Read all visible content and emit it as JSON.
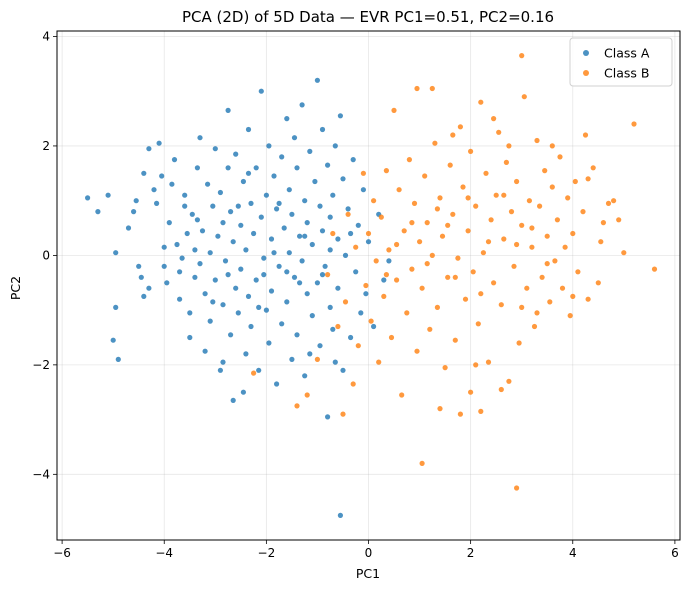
{
  "chart_data": {
    "type": "scatter",
    "title": "PCA (2D) of 5D Data — EVR PC1=0.51, PC2=0.16",
    "xlabel": "PC1",
    "ylabel": "PC2",
    "xlim": [
      -6.1,
      6.1
    ],
    "ylim": [
      -5.2,
      4.1
    ],
    "xticks": [
      -6,
      -4,
      -2,
      0,
      2,
      4,
      6
    ],
    "yticks": [
      -4,
      -2,
      0,
      2,
      4
    ],
    "grid": true,
    "legend_position": "top-right",
    "series": [
      {
        "name": "Class A",
        "color": "#1f77b4",
        "points": [
          [
            -5.5,
            1.05
          ],
          [
            -5.3,
            0.8
          ],
          [
            -5.1,
            1.1
          ],
          [
            -4.95,
            0.05
          ],
          [
            -4.95,
            -0.95
          ],
          [
            -5.0,
            -1.55
          ],
          [
            -4.9,
            -1.9
          ],
          [
            -4.7,
            0.5
          ],
          [
            -4.6,
            0.8
          ],
          [
            -4.55,
            1.0
          ],
          [
            -4.5,
            -0.2
          ],
          [
            -4.45,
            -0.4
          ],
          [
            -4.4,
            -0.75
          ],
          [
            -4.3,
            -0.6
          ],
          [
            -4.4,
            1.5
          ],
          [
            -4.3,
            1.95
          ],
          [
            -4.2,
            1.2
          ],
          [
            -4.1,
            2.05
          ],
          [
            -4.05,
            1.45
          ],
          [
            -4.0,
            0.15
          ],
          [
            -4.0,
            -0.2
          ],
          [
            -3.95,
            -0.5
          ],
          [
            -3.9,
            0.6
          ],
          [
            -3.8,
            1.75
          ],
          [
            -3.75,
            0.2
          ],
          [
            -3.7,
            -0.3
          ],
          [
            -3.7,
            -0.8
          ],
          [
            -3.6,
            1.1
          ],
          [
            -3.6,
            0.9
          ],
          [
            -3.55,
            0.4
          ],
          [
            -3.5,
            -1.05
          ],
          [
            -3.5,
            -1.5
          ],
          [
            -3.45,
            0.75
          ],
          [
            -3.4,
            0.1
          ],
          [
            -3.4,
            -0.4
          ],
          [
            -3.35,
            1.6
          ],
          [
            -3.3,
            2.15
          ],
          [
            -3.3,
            -0.15
          ],
          [
            -3.25,
            0.45
          ],
          [
            -3.2,
            -0.7
          ],
          [
            -3.2,
            -1.75
          ],
          [
            -3.15,
            1.3
          ],
          [
            -3.1,
            0.05
          ],
          [
            -3.1,
            -1.2
          ],
          [
            -3.05,
            0.9
          ],
          [
            -3.0,
            1.95
          ],
          [
            -3.0,
            -0.45
          ],
          [
            -2.95,
            0.35
          ],
          [
            -2.9,
            -2.1
          ],
          [
            -2.9,
            1.15
          ],
          [
            -2.85,
            0.6
          ],
          [
            -2.85,
            -0.9
          ],
          [
            -2.8,
            -0.1
          ],
          [
            -2.75,
            2.65
          ],
          [
            -2.75,
            1.6
          ],
          [
            -2.7,
            0.8
          ],
          [
            -2.7,
            -1.45
          ],
          [
            -2.65,
            0.25
          ],
          [
            -2.65,
            -2.65
          ],
          [
            -2.6,
            -0.6
          ],
          [
            -2.6,
            1.85
          ],
          [
            -2.55,
            -1.05
          ],
          [
            -2.5,
            0.55
          ],
          [
            -2.5,
            -0.25
          ],
          [
            -2.45,
            1.35
          ],
          [
            -2.45,
            -2.5
          ],
          [
            -2.4,
            -1.8
          ],
          [
            -2.4,
            0.1
          ],
          [
            -2.35,
            2.3
          ],
          [
            -2.35,
            -0.75
          ],
          [
            -2.3,
            0.95
          ],
          [
            -2.3,
            -1.3
          ],
          [
            -2.25,
            0.4
          ],
          [
            -2.2,
            1.6
          ],
          [
            -2.2,
            -0.45
          ],
          [
            -2.15,
            -2.1
          ],
          [
            -2.1,
            3.0
          ],
          [
            -2.1,
            0.7
          ],
          [
            -2.05,
            -0.05
          ],
          [
            -2.0,
            1.1
          ],
          [
            -2.0,
            -1.0
          ],
          [
            -1.95,
            2.0
          ],
          [
            -1.95,
            -1.6
          ],
          [
            -1.9,
            0.3
          ],
          [
            -1.9,
            -0.65
          ],
          [
            -1.85,
            1.45
          ],
          [
            -1.8,
            0.85
          ],
          [
            -1.8,
            -2.35
          ],
          [
            -1.75,
            -0.2
          ],
          [
            -1.7,
            1.8
          ],
          [
            -1.7,
            -1.25
          ],
          [
            -1.65,
            0.5
          ],
          [
            -1.6,
            2.5
          ],
          [
            -1.6,
            -0.85
          ],
          [
            -1.55,
            1.2
          ],
          [
            -1.55,
            0.05
          ],
          [
            -1.5,
            -1.9
          ],
          [
            -1.5,
            0.75
          ],
          [
            -1.45,
            2.15
          ],
          [
            -1.45,
            -0.4
          ],
          [
            -1.4,
            1.6
          ],
          [
            -1.4,
            -1.45
          ],
          [
            -1.35,
            0.35
          ],
          [
            -1.3,
            2.75
          ],
          [
            -1.3,
            -0.1
          ],
          [
            -1.25,
            1.0
          ],
          [
            -1.25,
            -2.2
          ],
          [
            -1.2,
            0.6
          ],
          [
            -1.2,
            -0.7
          ],
          [
            -1.15,
            1.9
          ],
          [
            -1.1,
            -1.1
          ],
          [
            -1.1,
            0.2
          ],
          [
            -1.05,
            1.35
          ],
          [
            -1.0,
            -0.5
          ],
          [
            -1.0,
            3.2
          ],
          [
            -0.95,
            0.9
          ],
          [
            -0.95,
            -1.65
          ],
          [
            -0.9,
            2.3
          ],
          [
            -0.9,
            0.45
          ],
          [
            -0.85,
            -0.2
          ],
          [
            -0.8,
            1.65
          ],
          [
            -0.8,
            -2.95
          ],
          [
            -0.75,
            0.7
          ],
          [
            -0.75,
            -0.95
          ],
          [
            -0.7,
            1.1
          ],
          [
            -0.7,
            -1.35
          ],
          [
            -0.65,
            2.0
          ],
          [
            -0.6,
            0.3
          ],
          [
            -0.6,
            -0.6
          ],
          [
            -0.55,
            2.55
          ],
          [
            -0.55,
            -4.75
          ],
          [
            -0.5,
            1.4
          ],
          [
            -0.5,
            -2.1
          ],
          [
            -0.45,
            0.0
          ],
          [
            -0.4,
            0.85
          ],
          [
            -0.35,
            -1.5
          ],
          [
            -0.3,
            1.75
          ],
          [
            -0.25,
            -0.3
          ],
          [
            -0.2,
            0.55
          ],
          [
            -0.15,
            -1.05
          ],
          [
            -0.1,
            1.2
          ],
          [
            -0.05,
            -0.7
          ],
          [
            0.0,
            0.25
          ],
          [
            0.1,
            -1.3
          ],
          [
            0.2,
            0.75
          ],
          [
            0.3,
            -0.45
          ],
          [
            0.4,
            -0.1
          ],
          [
            -1.6,
            -0.3
          ],
          [
            -1.85,
            0.05
          ],
          [
            -2.15,
            -0.95
          ],
          [
            -2.55,
            0.9
          ],
          [
            -2.75,
            -0.35
          ],
          [
            -3.05,
            -0.85
          ],
          [
            -3.35,
            0.65
          ],
          [
            -3.65,
            -0.05
          ],
          [
            -3.85,
            1.3
          ],
          [
            -4.15,
            0.95
          ],
          [
            -2.85,
            -1.95
          ],
          [
            -2.35,
            1.5
          ],
          [
            -1.35,
            -0.5
          ],
          [
            -1.15,
            -1.8
          ],
          [
            -0.65,
            -1.95
          ],
          [
            -0.9,
            -0.35
          ],
          [
            -1.75,
            0.95
          ],
          [
            -2.05,
            -0.35
          ],
          [
            -1.25,
            0.35
          ],
          [
            -0.75,
            0.1
          ],
          [
            -0.35,
            0.4
          ]
        ]
      },
      {
        "name": "Class B",
        "color": "#ff7f0e",
        "points": [
          [
            5.6,
            -0.25
          ],
          [
            5.2,
            2.4
          ],
          [
            5.0,
            0.05
          ],
          [
            4.9,
            0.65
          ],
          [
            4.8,
            1.0
          ],
          [
            4.7,
            0.95
          ],
          [
            4.6,
            0.6
          ],
          [
            4.55,
            0.25
          ],
          [
            4.5,
            -0.5
          ],
          [
            4.4,
            1.6
          ],
          [
            4.3,
            -0.8
          ],
          [
            4.25,
            2.2
          ],
          [
            4.2,
            0.8
          ],
          [
            4.1,
            -0.3
          ],
          [
            4.05,
            1.35
          ],
          [
            4.0,
            0.4
          ],
          [
            3.95,
            -1.1
          ],
          [
            3.9,
            1.05
          ],
          [
            3.85,
            0.15
          ],
          [
            3.8,
            -0.6
          ],
          [
            3.75,
            1.8
          ],
          [
            3.7,
            0.65
          ],
          [
            3.65,
            -0.1
          ],
          [
            3.6,
            1.25
          ],
          [
            3.55,
            -0.85
          ],
          [
            3.5,
            0.35
          ],
          [
            3.45,
            1.55
          ],
          [
            3.4,
            -0.4
          ],
          [
            3.35,
            0.9
          ],
          [
            3.3,
            2.1
          ],
          [
            3.25,
            -1.3
          ],
          [
            3.2,
            0.15
          ],
          [
            3.15,
            1.0
          ],
          [
            3.1,
            -0.6
          ],
          [
            3.05,
            2.9
          ],
          [
            3.0,
            0.55
          ],
          [
            3.0,
            3.65
          ],
          [
            2.95,
            -1.6
          ],
          [
            2.9,
            1.35
          ],
          [
            2.9,
            -4.25
          ],
          [
            2.85,
            -0.2
          ],
          [
            2.8,
            0.8
          ],
          [
            2.75,
            -2.3
          ],
          [
            2.7,
            1.7
          ],
          [
            2.65,
            0.3
          ],
          [
            2.6,
            -0.9
          ],
          [
            2.55,
            2.25
          ],
          [
            2.5,
            1.1
          ],
          [
            2.45,
            -0.5
          ],
          [
            2.4,
            0.65
          ],
          [
            2.35,
            -1.95
          ],
          [
            2.3,
            1.5
          ],
          [
            2.25,
            0.05
          ],
          [
            2.2,
            2.8
          ],
          [
            2.2,
            -2.85
          ],
          [
            2.15,
            -1.25
          ],
          [
            2.1,
            0.9
          ],
          [
            2.05,
            -0.3
          ],
          [
            2.0,
            1.9
          ],
          [
            2.0,
            -2.5
          ],
          [
            1.95,
            0.45
          ],
          [
            1.9,
            -0.8
          ],
          [
            1.85,
            1.25
          ],
          [
            1.8,
            2.35
          ],
          [
            1.75,
            -0.05
          ],
          [
            1.7,
            -1.55
          ],
          [
            1.65,
            0.75
          ],
          [
            1.6,
            1.65
          ],
          [
            1.55,
            -0.4
          ],
          [
            1.5,
            -2.05
          ],
          [
            1.45,
            0.35
          ],
          [
            1.4,
            1.05
          ],
          [
            1.35,
            -0.95
          ],
          [
            1.3,
            2.05
          ],
          [
            1.25,
            0.0
          ],
          [
            1.2,
            -1.35
          ],
          [
            1.15,
            0.6
          ],
          [
            1.1,
            1.45
          ],
          [
            1.05,
            -3.8
          ],
          [
            1.05,
            -0.6
          ],
          [
            1.0,
            0.25
          ],
          [
            0.95,
            3.05
          ],
          [
            0.95,
            -1.75
          ],
          [
            0.9,
            0.95
          ],
          [
            0.85,
            -0.25
          ],
          [
            0.8,
            1.75
          ],
          [
            0.75,
            -1.05
          ],
          [
            0.7,
            0.45
          ],
          [
            0.65,
            -2.55
          ],
          [
            0.6,
            1.2
          ],
          [
            0.55,
            -0.45
          ],
          [
            0.5,
            2.65
          ],
          [
            0.45,
            -1.5
          ],
          [
            0.4,
            0.1
          ],
          [
            0.35,
            1.55
          ],
          [
            0.3,
            -0.75
          ],
          [
            0.25,
            0.7
          ],
          [
            0.2,
            -1.95
          ],
          [
            0.15,
            -0.1
          ],
          [
            0.1,
            1.0
          ],
          [
            0.05,
            -1.2
          ],
          [
            0.0,
            0.4
          ],
          [
            -0.05,
            -0.55
          ],
          [
            -0.1,
            1.5
          ],
          [
            -0.2,
            -1.65
          ],
          [
            -0.25,
            0.15
          ],
          [
            -0.3,
            -2.35
          ],
          [
            -0.4,
            0.75
          ],
          [
            -0.45,
            -0.85
          ],
          [
            -0.5,
            -2.9
          ],
          [
            -0.6,
            -1.3
          ],
          [
            -0.7,
            0.4
          ],
          [
            -0.8,
            -0.35
          ],
          [
            -1.0,
            -1.9
          ],
          [
            -1.2,
            -2.55
          ],
          [
            -1.4,
            -2.75
          ],
          [
            -2.25,
            -2.15
          ],
          [
            1.25,
            3.05
          ],
          [
            2.75,
            2.0
          ],
          [
            3.6,
            2.0
          ],
          [
            4.3,
            1.4
          ],
          [
            2.45,
            2.5
          ],
          [
            1.65,
            2.2
          ],
          [
            2.1,
            -2.0
          ],
          [
            3.3,
            -1.05
          ],
          [
            1.8,
            -2.9
          ],
          [
            1.4,
            -2.8
          ],
          [
            2.6,
            -2.45
          ],
          [
            3.0,
            -0.95
          ],
          [
            3.5,
            -0.15
          ],
          [
            4.0,
            -0.75
          ],
          [
            2.35,
            0.25
          ],
          [
            1.95,
            1.05
          ],
          [
            1.55,
            0.55
          ],
          [
            1.15,
            -0.15
          ],
          [
            0.85,
            0.6
          ],
          [
            0.55,
            0.2
          ],
          [
            0.35,
            -0.35
          ],
          [
            2.9,
            0.2
          ],
          [
            3.2,
            0.5
          ],
          [
            2.65,
            1.1
          ],
          [
            2.2,
            -0.7
          ],
          [
            1.7,
            -0.4
          ],
          [
            1.35,
            0.85
          ]
        ]
      }
    ]
  }
}
